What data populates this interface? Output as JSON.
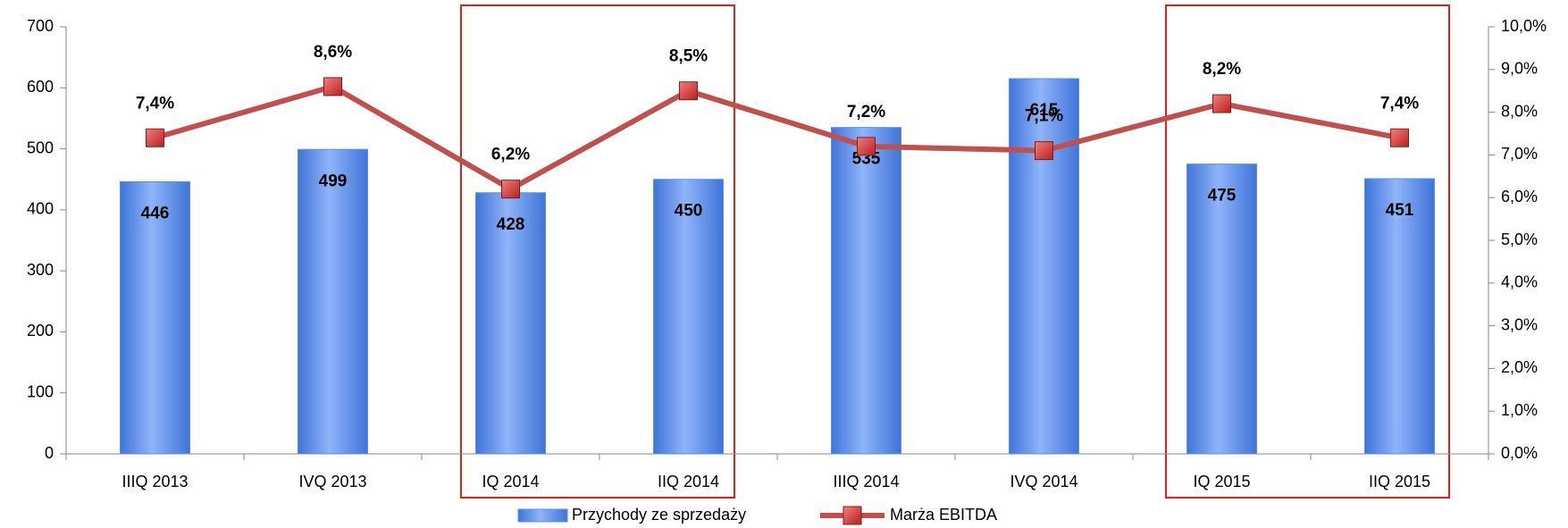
{
  "chart_data": {
    "type": "bar_line",
    "categories": [
      "IIIQ 2013",
      "IVQ 2013",
      "IQ 2014",
      "IIQ 2014",
      "IIIQ 2014",
      "IVQ 2014",
      "IQ 2015",
      "IIQ 2015"
    ],
    "series": [
      {
        "name": "Przychody ze sprzedaży",
        "color": "#5b8ff0",
        "type": "bar",
        "values": [
          446,
          499,
          428,
          450,
          535,
          615,
          475,
          451
        ]
      },
      {
        "name": "Marża EBITDA",
        "color": "#c0504d",
        "type": "line",
        "axis": "y2",
        "values": [
          7.4,
          8.6,
          6.2,
          8.5,
          7.2,
          7.1,
          8.2,
          7.4
        ],
        "value_labels": [
          "7,4%",
          "8,6%",
          "6,2%",
          "8,5%",
          "7,2%",
          "7,1%",
          "8,2%",
          "7,4%"
        ]
      }
    ],
    "ylim": [
      0,
      700
    ],
    "yticks": [
      0,
      100,
      200,
      300,
      400,
      500,
      600,
      700
    ],
    "y2lim": [
      0,
      10
    ],
    "y2ticks": [
      {
        "value": 0,
        "label": "0,0%"
      },
      {
        "value": 1,
        "label": "1,0%"
      },
      {
        "value": 2,
        "label": "2,0%"
      },
      {
        "value": 3,
        "label": "3,0%"
      },
      {
        "value": 4,
        "label": "4,0%"
      },
      {
        "value": 5,
        "label": "5,0%"
      },
      {
        "value": 6,
        "label": "6,0%"
      },
      {
        "value": 7,
        "label": "7,0%"
      },
      {
        "value": 8,
        "label": "8,0%"
      },
      {
        "value": 9,
        "label": "9,0%"
      },
      {
        "value": 10,
        "label": "10,0%"
      }
    ],
    "legend": "bottom"
  }
}
